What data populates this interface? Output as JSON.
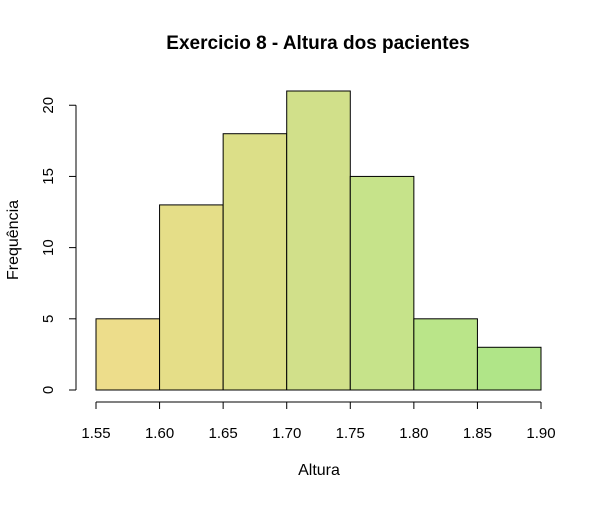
{
  "chart_data": {
    "type": "bar",
    "subtype": "histogram",
    "title": "Exercicio 8 - Altura dos pacientes",
    "xlabel": "Altura",
    "ylabel": "Frequência",
    "bin_edges": [
      1.55,
      1.6,
      1.65,
      1.7,
      1.75,
      1.8,
      1.85,
      1.9
    ],
    "categories": [
      "1.55-1.60",
      "1.60-1.65",
      "1.65-1.70",
      "1.70-1.75",
      "1.75-1.80",
      "1.80-1.85",
      "1.85-1.90"
    ],
    "values": [
      5,
      13,
      18,
      21,
      15,
      5,
      3
    ],
    "bar_colors": [
      "#EDDD8B",
      "#E5DE88",
      "#DCDF88",
      "#D1E08A",
      "#C6E38A",
      "#BAE589",
      "#B0E588"
    ],
    "xlim": [
      1.55,
      1.9
    ],
    "ylim": [
      0,
      21
    ],
    "x_ticks": [
      "1.55",
      "1.60",
      "1.65",
      "1.70",
      "1.75",
      "1.80",
      "1.85",
      "1.90"
    ],
    "y_ticks": [
      "0",
      "5",
      "10",
      "15",
      "20"
    ],
    "grid": false,
    "legend": "none"
  }
}
